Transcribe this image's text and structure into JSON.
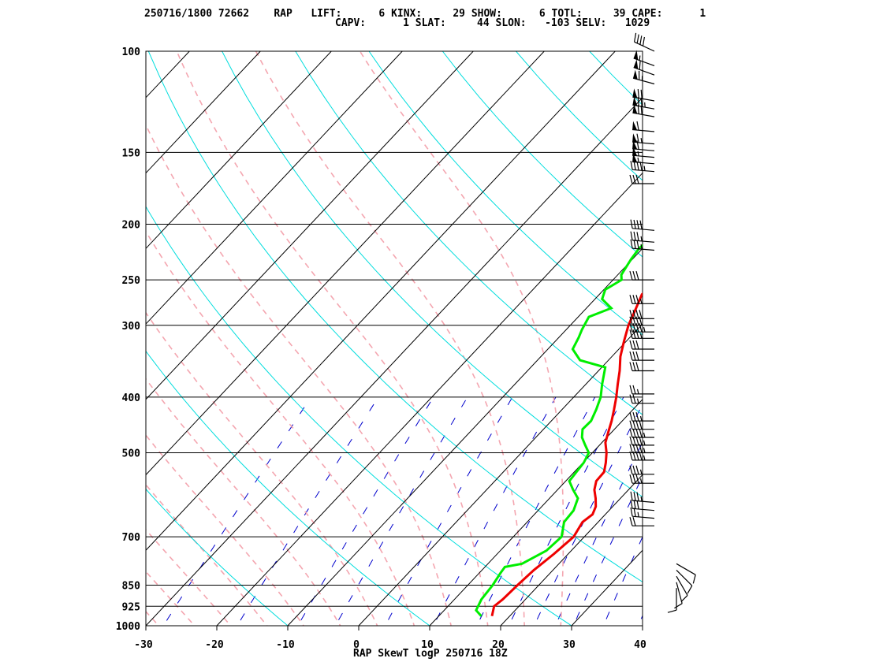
{
  "header": {
    "line1": "250716/1800 72662    RAP   LIFT:      6 KINX:     29 SHOW:      6 TOTL:     39 CAPE:      1",
    "line2": "CAPV:      1 SLAT:     44 SLON:   -103 SELV:   1029"
  },
  "chart_data": {
    "type": "line",
    "title": "RAP SkewT logP 250716 18Z",
    "xlabel": "",
    "ylabel": "",
    "xlim": [
      -30,
      40
    ],
    "ylim": [
      1000,
      100
    ],
    "y_scale": "log",
    "x_ticks": [
      "-30",
      "-20",
      "-10",
      "0",
      "10",
      "20",
      "30",
      "40"
    ],
    "x_tick_values": [
      -30,
      -20,
      -10,
      0,
      10,
      20,
      30,
      40
    ],
    "p_ticks": [
      "100",
      "150",
      "200",
      "250",
      "300",
      "400",
      "500",
      "700",
      "850",
      "925",
      "1000"
    ],
    "p_tick_values": [
      100,
      150,
      200,
      250,
      300,
      400,
      500,
      700,
      850,
      925,
      1000
    ],
    "colors": {
      "temperature": "#ee0000",
      "dewpoint": "#00ee00",
      "isotherm": "#000000",
      "dry_adiabat": "#00dddd",
      "moist_adiabat": "#f4a6b0",
      "mixing_ratio": "#0000cc"
    },
    "series": [
      {
        "id": "temperature",
        "values": [
          [
            962,
            17.5
          ],
          [
            925,
            16.5
          ],
          [
            900,
            16.8
          ],
          [
            850,
            17.0
          ],
          [
            800,
            17.3
          ],
          [
            750,
            18.0
          ],
          [
            700,
            18.5
          ],
          [
            660,
            17.8
          ],
          [
            640,
            18.2
          ],
          [
            620,
            17.6
          ],
          [
            600,
            16.5
          ],
          [
            580,
            15.2
          ],
          [
            560,
            14.3
          ],
          [
            540,
            14.2
          ],
          [
            520,
            13.2
          ],
          [
            500,
            12.0
          ],
          [
            480,
            10.5
          ],
          [
            460,
            9.5
          ],
          [
            440,
            8.5
          ],
          [
            420,
            7.3
          ],
          [
            400,
            6.0
          ],
          [
            380,
            4.5
          ],
          [
            360,
            3.0
          ],
          [
            340,
            1.2
          ],
          [
            320,
            -0.3
          ],
          [
            300,
            -1.8
          ],
          [
            280,
            -3.0
          ],
          [
            265,
            -4.0
          ],
          [
            250,
            -3.5
          ],
          [
            235,
            -3.8
          ],
          [
            220,
            -4.8
          ],
          [
            205,
            -5.8
          ],
          [
            195,
            -5.5
          ],
          [
            185,
            -5.3
          ],
          [
            175,
            -6.0
          ],
          [
            168,
            -6.2
          ],
          [
            160,
            -6.0
          ],
          [
            150,
            -6.5
          ],
          [
            143,
            -7.2
          ],
          [
            135,
            -8.5
          ],
          [
            128,
            -9.5
          ],
          [
            122,
            -10.0
          ],
          [
            116,
            -10.8
          ],
          [
            110,
            -12.3
          ],
          [
            105,
            -13.5
          ],
          [
            101,
            -12.5
          ],
          [
            100,
            -12.8
          ]
        ]
      },
      {
        "id": "dewpoint",
        "values": [
          [
            962,
            16.0
          ],
          [
            940,
            14.5
          ],
          [
            900,
            13.8
          ],
          [
            850,
            13.5
          ],
          [
            810,
            13.0
          ],
          [
            790,
            12.8
          ],
          [
            780,
            14.8
          ],
          [
            740,
            16.5
          ],
          [
            700,
            16.8
          ],
          [
            660,
            15.2
          ],
          [
            630,
            15.0
          ],
          [
            600,
            14.0
          ],
          [
            580,
            12.2
          ],
          [
            560,
            10.5
          ],
          [
            540,
            10.3
          ],
          [
            520,
            10.1
          ],
          [
            500,
            9.5
          ],
          [
            485,
            8.0
          ],
          [
            470,
            6.5
          ],
          [
            455,
            5.5
          ],
          [
            440,
            5.6
          ],
          [
            420,
            4.8
          ],
          [
            400,
            3.8
          ],
          [
            380,
            2.3
          ],
          [
            355,
            0.5
          ],
          [
            345,
            -4.0
          ],
          [
            330,
            -6.5
          ],
          [
            315,
            -7.2
          ],
          [
            305,
            -7.8
          ],
          [
            290,
            -8.5
          ],
          [
            280,
            -6.5
          ],
          [
            270,
            -9.0
          ],
          [
            260,
            -9.8
          ],
          [
            250,
            -8.8
          ],
          [
            245,
            -9.5
          ],
          [
            230,
            -10.2
          ],
          [
            220,
            -10.5
          ],
          [
            210,
            -10.0
          ],
          [
            200,
            -11.0
          ],
          [
            195,
            -9.5
          ],
          [
            185,
            -10.5
          ],
          [
            178,
            -11.0
          ],
          [
            170,
            -10.5
          ],
          [
            162,
            -10.0
          ],
          [
            155,
            -10.2
          ],
          [
            150,
            -9.8
          ],
          [
            145,
            -10.5
          ],
          [
            138,
            -11.5
          ],
          [
            130,
            -12.8
          ],
          [
            122,
            -14.2
          ],
          [
            116,
            -15.0
          ],
          [
            110,
            -16.8
          ],
          [
            105,
            -17.5
          ],
          [
            100,
            -16.5
          ]
        ]
      }
    ],
    "wind_barbs": [
      {
        "p": 100,
        "dir": 295,
        "spd": 40
      },
      {
        "p": 106,
        "dir": 290,
        "spd": 55
      },
      {
        "p": 110,
        "dir": 290,
        "spd": 60
      },
      {
        "p": 114,
        "dir": 285,
        "spd": 65
      },
      {
        "p": 122,
        "dir": 280,
        "spd": 70
      },
      {
        "p": 126,
        "dir": 280,
        "spd": 75
      },
      {
        "p": 130,
        "dir": 280,
        "spd": 70
      },
      {
        "p": 138,
        "dir": 275,
        "spd": 60
      },
      {
        "p": 145,
        "dir": 275,
        "spd": 65
      },
      {
        "p": 149,
        "dir": 275,
        "spd": 60
      },
      {
        "p": 153,
        "dir": 275,
        "spd": 55
      },
      {
        "p": 157,
        "dir": 275,
        "spd": 55
      },
      {
        "p": 162,
        "dir": 275,
        "spd": 45
      },
      {
        "p": 170,
        "dir": 270,
        "spd": 30
      },
      {
        "p": 205,
        "dir": 275,
        "spd": 40
      },
      {
        "p": 215,
        "dir": 275,
        "spd": 35
      },
      {
        "p": 222,
        "dir": 275,
        "spd": 35
      },
      {
        "p": 250,
        "dir": 270,
        "spd": 30
      },
      {
        "p": 275,
        "dir": 270,
        "spd": 35
      },
      {
        "p": 292,
        "dir": 270,
        "spd": 40
      },
      {
        "p": 300,
        "dir": 270,
        "spd": 40
      },
      {
        "p": 308,
        "dir": 270,
        "spd": 45
      },
      {
        "p": 316,
        "dir": 270,
        "spd": 35
      },
      {
        "p": 330,
        "dir": 270,
        "spd": 30
      },
      {
        "p": 345,
        "dir": 270,
        "spd": 30
      },
      {
        "p": 360,
        "dir": 270,
        "spd": 30
      },
      {
        "p": 395,
        "dir": 270,
        "spd": 25
      },
      {
        "p": 410,
        "dir": 270,
        "spd": 25
      },
      {
        "p": 440,
        "dir": 270,
        "spd": 35
      },
      {
        "p": 455,
        "dir": 270,
        "spd": 40
      },
      {
        "p": 470,
        "dir": 270,
        "spd": 45
      },
      {
        "p": 485,
        "dir": 270,
        "spd": 45
      },
      {
        "p": 500,
        "dir": 270,
        "spd": 45
      },
      {
        "p": 515,
        "dir": 270,
        "spd": 45
      },
      {
        "p": 545,
        "dir": 270,
        "spd": 35
      },
      {
        "p": 565,
        "dir": 270,
        "spd": 35
      },
      {
        "p": 610,
        "dir": 275,
        "spd": 35
      },
      {
        "p": 630,
        "dir": 275,
        "spd": 30
      },
      {
        "p": 650,
        "dir": 275,
        "spd": 25
      },
      {
        "p": 670,
        "dir": 270,
        "spd": 20
      },
      {
        "p": 780,
        "dir": 120,
        "spd": 10
      },
      {
        "p": 800,
        "dir": 135,
        "spd": 10
      },
      {
        "p": 820,
        "dir": 150,
        "spd": 10
      },
      {
        "p": 840,
        "dir": 165,
        "spd": 10
      },
      {
        "p": 860,
        "dir": 180,
        "spd": 10
      }
    ]
  }
}
